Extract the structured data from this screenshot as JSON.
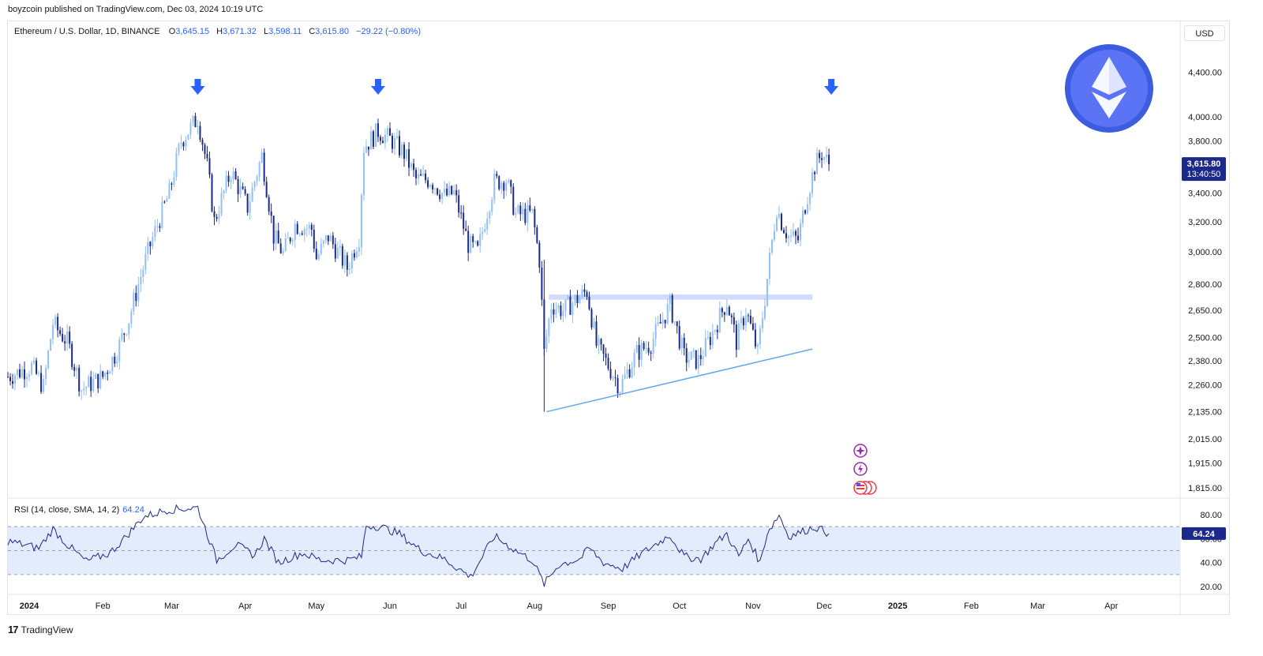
{
  "header": {
    "published": "boyzcoin published on TradingView.com, Dec 03, 2024 10:19 UTC"
  },
  "legend": {
    "symbol": "Ethereum / U.S. Dollar, 1D, BINANCE",
    "o_label": "O",
    "o": "3,645.15",
    "h_label": "H",
    "h": "3,671.32",
    "l_label": "L",
    "l": "3,598.11",
    "c_label": "C",
    "c": "3,615.80",
    "change": "−29.22 (−0.80%)"
  },
  "currency_button": "USD",
  "price_badge": {
    "price": "3,615.80",
    "countdown": "13:40:50",
    "color": "#1b2a8a"
  },
  "rsi": {
    "legend": "RSI (14, close, SMA, 14, 2)",
    "value": "64.24",
    "badge": "64.24"
  },
  "footer": {
    "brand": "TradingView",
    "logo": "17"
  },
  "colors": {
    "up": "#90bff9",
    "down": "#1b2a8a",
    "arrow": "#2962ff",
    "rsi_line": "#1b2a8a",
    "rsi_band": "#e3ecfd",
    "eth_circle": "#5b74f5"
  },
  "chart_data": {
    "type": "candlestick",
    "scale": "log",
    "title": "Ethereum / U.S. Dollar, 1D, BINANCE",
    "y_ticks": [
      "4,400.00",
      "4,000.00",
      "3,800.00",
      "3,400.00",
      "3,200.00",
      "3,000.00",
      "2,800.00",
      "2,650.00",
      "2,500.00",
      "2,380.00",
      "2,260.00",
      "2,135.00",
      "2,015.00",
      "1,915.00",
      "1,815.00"
    ],
    "x_ticks": [
      "2024",
      "Feb",
      "Mar",
      "Apr",
      "May",
      "Jun",
      "Jul",
      "Aug",
      "Sep",
      "Oct",
      "Nov",
      "Dec",
      "2025",
      "Feb",
      "Mar",
      "Apr"
    ],
    "x_range": [
      "2023-12-23",
      "2025-04-30"
    ],
    "y_range": [
      1760,
      4720
    ],
    "anchors": [
      {
        "date": "2023-12-23",
        "close": 2300
      },
      {
        "date": "2024-01-02",
        "close": 2350
      },
      {
        "date": "2024-01-07",
        "close": 2250
      },
      {
        "date": "2024-01-11",
        "close": 2580
      },
      {
        "date": "2024-01-13",
        "close": 2540
      },
      {
        "date": "2024-01-17",
        "close": 2480
      },
      {
        "date": "2024-01-23",
        "close": 2240
      },
      {
        "date": "2024-01-26",
        "close": 2260
      },
      {
        "date": "2024-02-01",
        "close": 2300
      },
      {
        "date": "2024-02-07",
        "close": 2430
      },
      {
        "date": "2024-02-12",
        "close": 2600
      },
      {
        "date": "2024-02-20",
        "close": 3000
      },
      {
        "date": "2024-02-29",
        "close": 3400
      },
      {
        "date": "2024-03-05",
        "close": 3800
      },
      {
        "date": "2024-03-12",
        "close": 3990
      },
      {
        "date": "2024-03-16",
        "close": 3600
      },
      {
        "date": "2024-03-19",
        "close": 3200
      },
      {
        "date": "2024-03-26",
        "close": 3560
      },
      {
        "date": "2024-04-02",
        "close": 3300
      },
      {
        "date": "2024-04-08",
        "close": 3680
      },
      {
        "date": "2024-04-13",
        "close": 3100
      },
      {
        "date": "2024-04-17",
        "close": 2990
      },
      {
        "date": "2024-04-22",
        "close": 3180
      },
      {
        "date": "2024-04-29",
        "close": 3150
      },
      {
        "date": "2024-05-01",
        "close": 2960
      },
      {
        "date": "2024-05-06",
        "close": 3100
      },
      {
        "date": "2024-05-14",
        "close": 2900
      },
      {
        "date": "2024-05-19",
        "close": 3100
      },
      {
        "date": "2024-05-21",
        "close": 3750
      },
      {
        "date": "2024-05-27",
        "close": 3880
      },
      {
        "date": "2024-06-02",
        "close": 3800
      },
      {
        "date": "2024-06-07",
        "close": 3700
      },
      {
        "date": "2024-06-12",
        "close": 3500
      },
      {
        "date": "2024-06-18",
        "close": 3500
      },
      {
        "date": "2024-06-24",
        "close": 3380
      },
      {
        "date": "2024-06-28",
        "close": 3400
      },
      {
        "date": "2024-07-04",
        "close": 3050
      },
      {
        "date": "2024-07-08",
        "close": 3000
      },
      {
        "date": "2024-07-15",
        "close": 3480
      },
      {
        "date": "2024-07-20",
        "close": 3500
      },
      {
        "date": "2024-07-24",
        "close": 3250
      },
      {
        "date": "2024-07-31",
        "close": 3250
      },
      {
        "date": "2024-08-03",
        "close": 2950
      },
      {
        "date": "2024-08-05",
        "close": 2420
      },
      {
        "date": "2024-08-08",
        "close": 2680
      },
      {
        "date": "2024-08-13",
        "close": 2650
      },
      {
        "date": "2024-08-23",
        "close": 2760
      },
      {
        "date": "2024-08-27",
        "close": 2460
      },
      {
        "date": "2024-09-06",
        "close": 2250
      },
      {
        "date": "2024-09-13",
        "close": 2420
      },
      {
        "date": "2024-09-19",
        "close": 2470
      },
      {
        "date": "2024-09-27",
        "close": 2680
      },
      {
        "date": "2024-10-03",
        "close": 2400
      },
      {
        "date": "2024-10-09",
        "close": 2380
      },
      {
        "date": "2024-10-14",
        "close": 2500
      },
      {
        "date": "2024-10-21",
        "close": 2700
      },
      {
        "date": "2024-10-25",
        "close": 2480
      },
      {
        "date": "2024-10-29",
        "close": 2650
      },
      {
        "date": "2024-11-03",
        "close": 2420
      },
      {
        "date": "2024-11-06",
        "close": 2720
      },
      {
        "date": "2024-11-11",
        "close": 3300
      },
      {
        "date": "2024-11-13",
        "close": 3200
      },
      {
        "date": "2024-11-16",
        "close": 3100
      },
      {
        "date": "2024-11-20",
        "close": 3080
      },
      {
        "date": "2024-11-23",
        "close": 3320
      },
      {
        "date": "2024-11-27",
        "close": 3600
      },
      {
        "date": "2024-11-30",
        "close": 3700
      },
      {
        "date": "2024-12-02",
        "close": 3645
      },
      {
        "date": "2024-12-03",
        "close": 3615.8
      }
    ],
    "horizontal_zone": {
      "from": "2024-08-07",
      "to": "2024-11-26",
      "low": 2710,
      "high": 2740
    },
    "trendline": {
      "from": {
        "date": "2024-08-06",
        "price": 2135
      },
      "to": {
        "date": "2024-11-26",
        "price": 2440
      }
    },
    "markers": [
      {
        "date": "2024-03-12",
        "type": "down-arrow"
      },
      {
        "date": "2024-05-27",
        "type": "down-arrow"
      },
      {
        "date": "2024-12-04",
        "type": "down-arrow"
      }
    ],
    "rsi": {
      "y_ticks": [
        "80.00",
        "60.00",
        "40.00",
        "20.00"
      ],
      "y_range": [
        14,
        92
      ],
      "bands": [
        30,
        50,
        70
      ],
      "anchors": [
        {
          "date": "2023-12-23",
          "v": 58
        },
        {
          "date": "2024-01-05",
          "v": 52
        },
        {
          "date": "2024-01-11",
          "v": 68
        },
        {
          "date": "2024-01-17",
          "v": 55
        },
        {
          "date": "2024-01-25",
          "v": 41
        },
        {
          "date": "2024-02-04",
          "v": 48
        },
        {
          "date": "2024-02-10",
          "v": 60
        },
        {
          "date": "2024-02-18",
          "v": 78
        },
        {
          "date": "2024-02-28",
          "v": 84
        },
        {
          "date": "2024-03-06",
          "v": 85
        },
        {
          "date": "2024-03-12",
          "v": 86
        },
        {
          "date": "2024-03-20",
          "v": 42
        },
        {
          "date": "2024-03-28",
          "v": 55
        },
        {
          "date": "2024-04-05",
          "v": 46
        },
        {
          "date": "2024-04-09",
          "v": 60
        },
        {
          "date": "2024-04-15",
          "v": 40
        },
        {
          "date": "2024-04-25",
          "v": 48
        },
        {
          "date": "2024-05-03",
          "v": 42
        },
        {
          "date": "2024-05-14",
          "v": 42
        },
        {
          "date": "2024-05-20",
          "v": 45
        },
        {
          "date": "2024-05-22",
          "v": 71
        },
        {
          "date": "2024-05-28",
          "v": 70
        },
        {
          "date": "2024-06-05",
          "v": 64
        },
        {
          "date": "2024-06-14",
          "v": 50
        },
        {
          "date": "2024-06-24",
          "v": 43
        },
        {
          "date": "2024-07-05",
          "v": 28
        },
        {
          "date": "2024-07-15",
          "v": 62
        },
        {
          "date": "2024-07-24",
          "v": 50
        },
        {
          "date": "2024-07-31",
          "v": 42
        },
        {
          "date": "2024-08-05",
          "v": 22
        },
        {
          "date": "2024-08-11",
          "v": 38
        },
        {
          "date": "2024-08-20",
          "v": 43
        },
        {
          "date": "2024-08-24",
          "v": 52
        },
        {
          "date": "2024-08-30",
          "v": 40
        },
        {
          "date": "2024-09-07",
          "v": 35
        },
        {
          "date": "2024-09-14",
          "v": 46
        },
        {
          "date": "2024-09-20",
          "v": 54
        },
        {
          "date": "2024-09-27",
          "v": 63
        },
        {
          "date": "2024-10-03",
          "v": 45
        },
        {
          "date": "2024-10-10",
          "v": 43
        },
        {
          "date": "2024-10-16",
          "v": 56
        },
        {
          "date": "2024-10-21",
          "v": 64
        },
        {
          "date": "2024-10-26",
          "v": 45
        },
        {
          "date": "2024-10-30",
          "v": 60
        },
        {
          "date": "2024-11-04",
          "v": 40
        },
        {
          "date": "2024-11-07",
          "v": 65
        },
        {
          "date": "2024-11-12",
          "v": 80
        },
        {
          "date": "2024-11-16",
          "v": 62
        },
        {
          "date": "2024-11-22",
          "v": 66
        },
        {
          "date": "2024-11-27",
          "v": 70
        },
        {
          "date": "2024-12-03",
          "v": 64.24
        }
      ]
    }
  }
}
